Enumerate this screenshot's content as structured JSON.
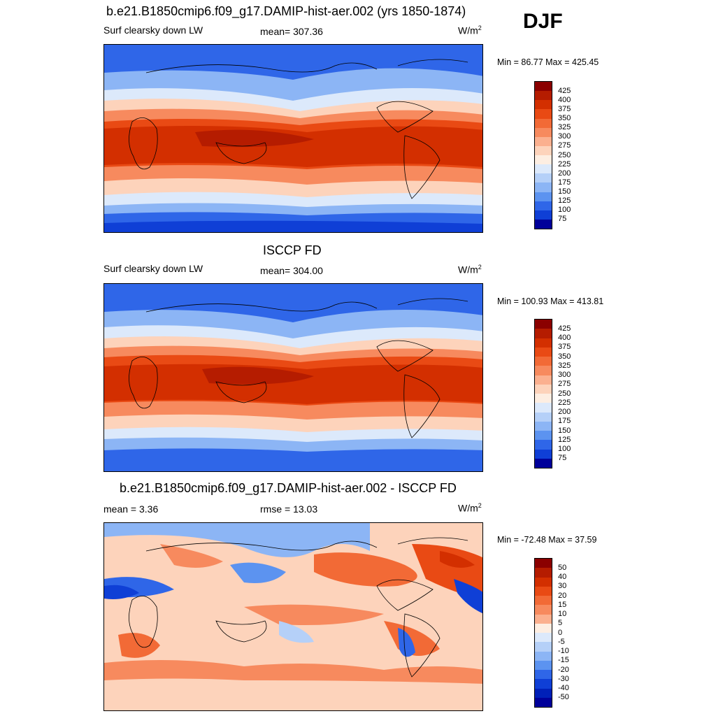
{
  "season": "DJF",
  "panels": [
    {
      "title": "b.e21.B1850cmip6.f09_g17.DAMIP-hist-aer.002 (yrs 1850-1874)",
      "left_label": "Surf clearsky down LW",
      "center_label": "mean= 307.36",
      "units": "W/m",
      "units_exp": "2",
      "minmax": "Min =  86.77 Max = 425.45",
      "kind": "field"
    },
    {
      "title": "ISCCP FD",
      "left_label": "Surf clearsky down LW",
      "center_label": "mean= 304.00",
      "units": "W/m",
      "units_exp": "2",
      "minmax": "Min = 100.93 Max = 413.81",
      "kind": "field"
    },
    {
      "title": "b.e21.B1850cmip6.f09_g17.DAMIP-hist-aer.002 - ISCCP FD",
      "left_label": "mean =   3.36",
      "center_label": "rmse =  13.03",
      "units": "W/m",
      "units_exp": "2",
      "minmax": "Min = -72.48 Max =  37.59",
      "kind": "diff"
    }
  ],
  "colorbar_field": {
    "labels": [
      "425",
      "400",
      "375",
      "350",
      "325",
      "300",
      "275",
      "250",
      "225",
      "200",
      "175",
      "150",
      "125",
      "100",
      "75"
    ],
    "colors": [
      "#8b0000",
      "#b51c00",
      "#d32f00",
      "#e94a14",
      "#f26a36",
      "#f78a5e",
      "#fbb08f",
      "#fdd3bb",
      "#fdeee2",
      "#dce9fb",
      "#b5d0f8",
      "#8cb5f5",
      "#5c93f0",
      "#2f66e8",
      "#0f3fd6",
      "#00009a"
    ]
  },
  "colorbar_diff": {
    "labels": [
      "50",
      "40",
      "30",
      "20",
      "15",
      "10",
      "5",
      "0",
      "-5",
      "-10",
      "-15",
      "-20",
      "-30",
      "-40",
      "-50"
    ],
    "colors": [
      "#8b0000",
      "#b51c00",
      "#d32f00",
      "#e94a14",
      "#f26a36",
      "#f78a5e",
      "#fbb08f",
      "#fdeee2",
      "#dce9fb",
      "#b5d0f8",
      "#8cb5f5",
      "#5c93f0",
      "#2f66e8",
      "#0f3fd6",
      "#0020b8",
      "#00009a"
    ]
  }
}
